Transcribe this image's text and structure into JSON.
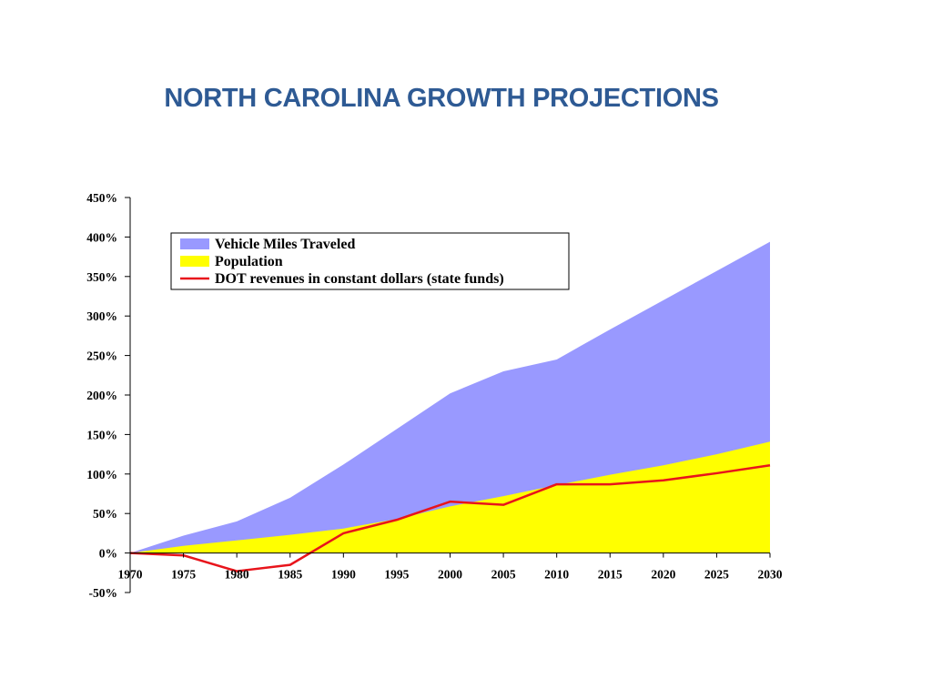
{
  "title": "NORTH CAROLINA GROWTH PROJECTIONS",
  "colors": {
    "title": "#2e5a94",
    "vmt": "#9999ff",
    "population": "#ffff00",
    "revenue": "#e8141b"
  },
  "chart_data": {
    "type": "area",
    "x": [
      "1970",
      "1975",
      "1980",
      "1985",
      "1990",
      "1995",
      "2000",
      "2005",
      "2010",
      "2015",
      "2020",
      "2025",
      "2030"
    ],
    "ylim": [
      -50,
      450
    ],
    "yticks": [
      -50,
      0,
      50,
      100,
      150,
      200,
      250,
      300,
      350,
      400,
      450
    ],
    "ytick_labels": [
      "-50%",
      "0%",
      "50%",
      "100%",
      "150%",
      "200%",
      "250%",
      "300%",
      "350%",
      "400%",
      "450%"
    ],
    "grid": false,
    "legend_position": "top-left",
    "series": [
      {
        "name": "Vehicle Miles Traveled",
        "kind": "area",
        "color": "#9999ff",
        "values": [
          0,
          22,
          40,
          70,
          112,
          157,
          202,
          230,
          245,
          283,
          320,
          357,
          394
        ]
      },
      {
        "name": "Population",
        "kind": "area",
        "color": "#ffff00",
        "values": [
          0,
          9,
          16,
          23,
          31,
          43,
          59,
          72,
          86,
          99,
          111,
          125,
          141
        ]
      },
      {
        "name": "DOT revenues in constant dollars (state funds)",
        "kind": "line",
        "color": "#e8141b",
        "values": [
          0,
          -3,
          -23,
          -15,
          25,
          42,
          65,
          61,
          87,
          87,
          92,
          101,
          111
        ]
      }
    ]
  }
}
